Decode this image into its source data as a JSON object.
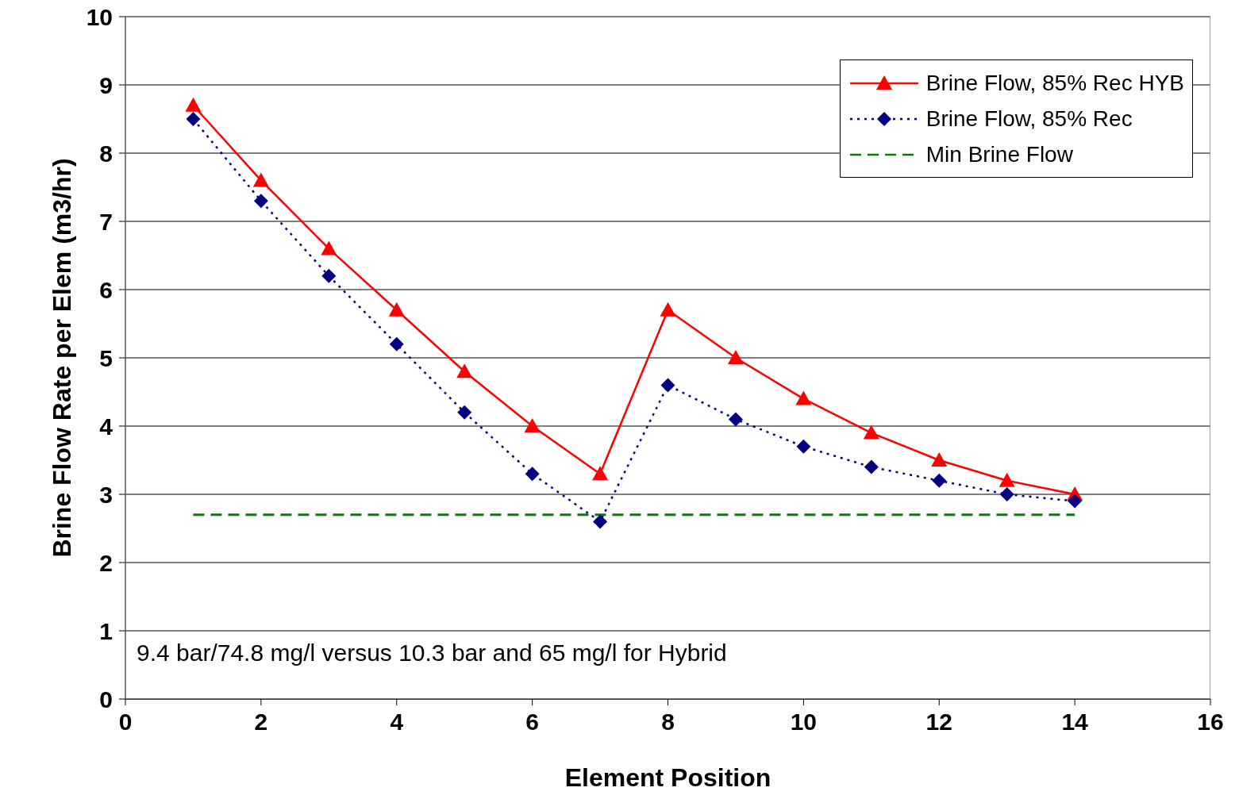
{
  "chart_data": {
    "type": "line",
    "xlabel": "Element Position",
    "ylabel": "Brine Flow Rate per Elem (m3/hr)",
    "x": [
      1,
      2,
      3,
      4,
      5,
      6,
      7,
      8,
      9,
      10,
      11,
      12,
      13,
      14
    ],
    "series": [
      {
        "name": "Brine Flow, 85% Rec HYB",
        "color": "#ff0000",
        "marker": "triangle",
        "line_style": "solid",
        "values": [
          8.7,
          7.6,
          6.6,
          5.7,
          4.8,
          4.0,
          3.3,
          5.7,
          5.0,
          4.4,
          3.9,
          3.5,
          3.2,
          3.0
        ]
      },
      {
        "name": "Brine Flow, 85% Rec",
        "color": "#000080",
        "marker": "diamond",
        "line_style": "dotted",
        "values": [
          8.5,
          7.3,
          6.2,
          5.2,
          4.2,
          3.3,
          2.6,
          4.6,
          4.1,
          3.7,
          3.4,
          3.2,
          3.0,
          2.9
        ]
      },
      {
        "name": "Min Brine Flow",
        "color": "#008000",
        "marker": "none",
        "line_style": "dashed",
        "values": [
          2.7,
          2.7,
          2.7,
          2.7,
          2.7,
          2.7,
          2.7,
          2.7,
          2.7,
          2.7,
          2.7,
          2.7,
          2.7,
          2.7
        ]
      }
    ],
    "xlim": [
      0,
      16
    ],
    "xticks": [
      0,
      2,
      4,
      6,
      8,
      10,
      12,
      14,
      16
    ],
    "ylim": [
      0,
      10
    ],
    "yticks": [
      0,
      1,
      2,
      3,
      4,
      5,
      6,
      7,
      8,
      9,
      10
    ],
    "grid": "y",
    "legend": "top right",
    "annotations": [
      "9.4 bar/74.8 mg/l versus 10.3 bar and 65 mg/l for Hybrid"
    ]
  }
}
